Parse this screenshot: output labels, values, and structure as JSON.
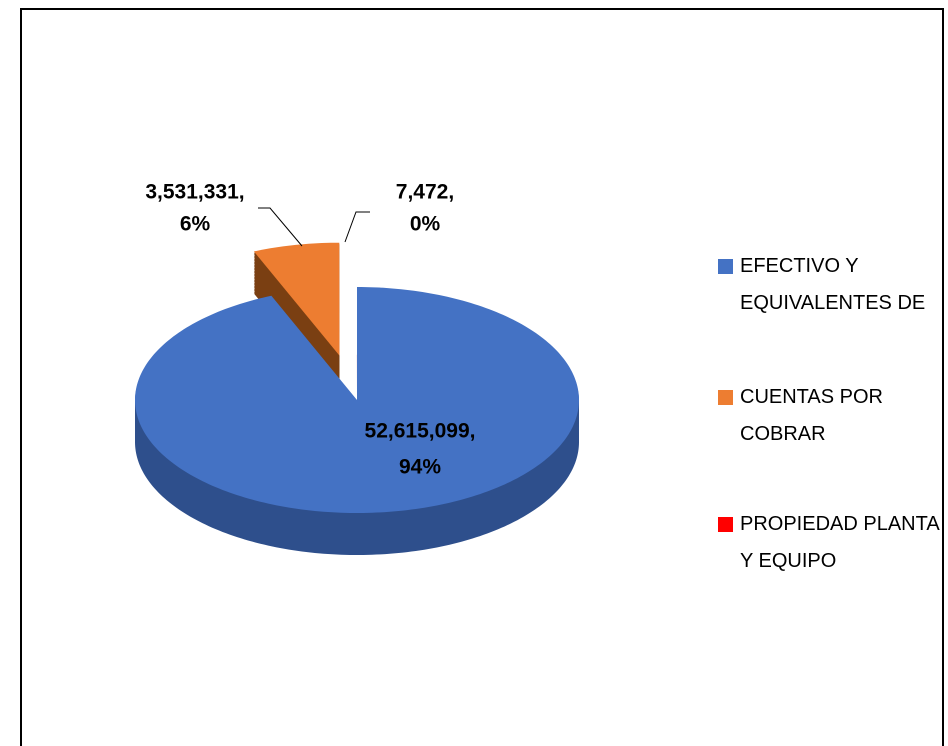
{
  "chart_data": {
    "type": "pie3d",
    "categories": [
      "EFECTIVO Y EQUIVALENTES DE",
      "CUENTAS POR COBRAR",
      "PROPIEDAD PLANTA Y EQUIPO"
    ],
    "values": [
      52615099,
      3531331,
      7472
    ],
    "value_labels": [
      "52,615,099,",
      "3,531,331,",
      "7,472,"
    ],
    "percent_labels": [
      "94%",
      "6%",
      "0%"
    ],
    "colors": [
      "#4472c4",
      "#ed7d31",
      "#ff0000"
    ],
    "side_colors": [
      "#2e4f8c",
      "#7a3f12",
      "#b30000"
    ],
    "exploded": [
      false,
      true,
      true
    ],
    "legend": "right"
  }
}
